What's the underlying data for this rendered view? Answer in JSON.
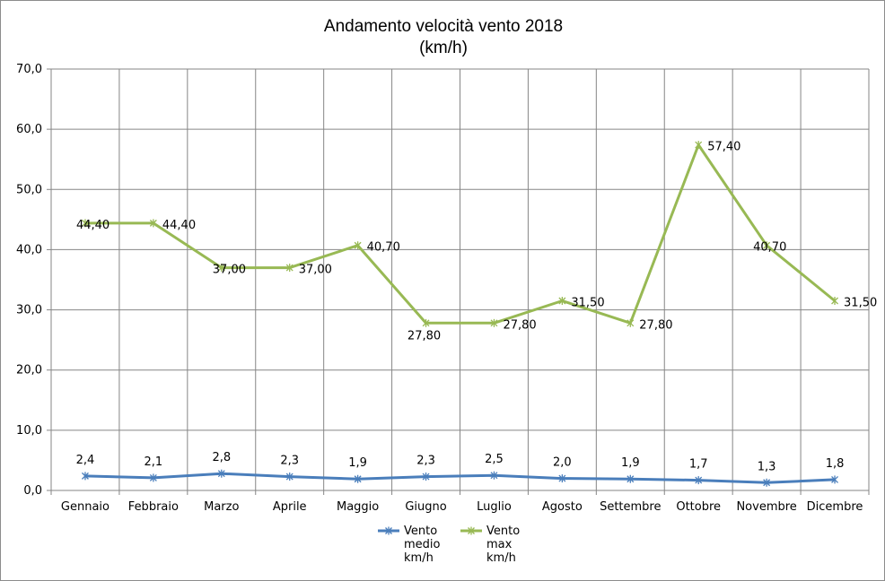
{
  "chart_data": {
    "type": "line",
    "title": "Andamento velocità vento 2018",
    "subtitle": "(km/h)",
    "categories": [
      "Gennaio",
      "Febbraio",
      "Marzo",
      "Aprile",
      "Maggio",
      "Giugno",
      "Luglio",
      "Agosto",
      "Settembre",
      "Ottobre",
      "Novembre",
      "Dicembre"
    ],
    "ylim": [
      0,
      70
    ],
    "yticks": [
      "0,0",
      "10,0",
      "20,0",
      "30,0",
      "40,0",
      "50,0",
      "60,0",
      "70,0"
    ],
    "grid": true,
    "legend_position": "bottom",
    "series": [
      {
        "name": "Vento medio km/h",
        "legend_lines": [
          "Vento",
          "medio",
          "km/h"
        ],
        "color": "#4a7ebb",
        "values": [
          2.4,
          2.1,
          2.8,
          2.3,
          1.9,
          2.3,
          2.5,
          2.0,
          1.9,
          1.7,
          1.3,
          1.8
        ],
        "labels": [
          "2,4",
          "2,1",
          "2,8",
          "2,3",
          "1,9",
          "2,3",
          "2,5",
          "2,0",
          "1,9",
          "1,7",
          "1,3",
          "1,8"
        ]
      },
      {
        "name": "Vento max km/h",
        "legend_lines": [
          "Vento",
          "max",
          "km/h"
        ],
        "color": "#98b954",
        "values": [
          44.4,
          44.4,
          37.0,
          37.0,
          40.7,
          27.8,
          27.8,
          31.5,
          27.8,
          57.4,
          40.7,
          31.5
        ],
        "labels": [
          "44,40",
          "44,40",
          "37,00",
          "37,00",
          "40,70",
          "27,80",
          "27,80",
          "31,50",
          "27,80",
          "57,40",
          "40,70",
          "31,50"
        ]
      }
    ]
  }
}
